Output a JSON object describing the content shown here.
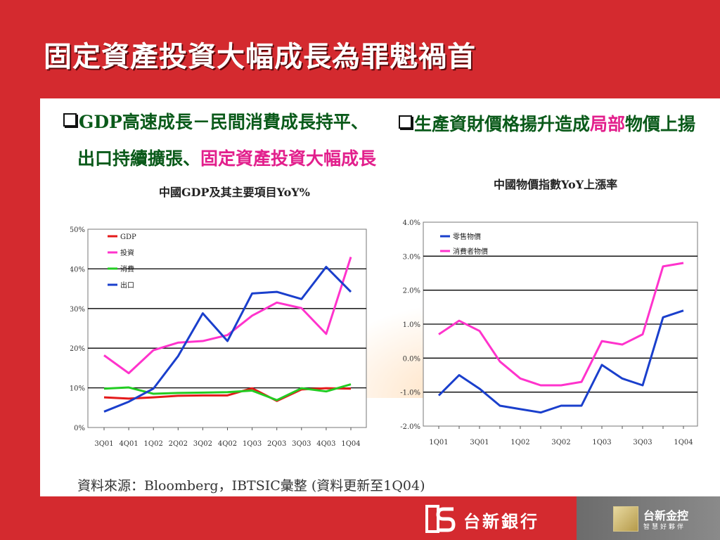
{
  "slide": {
    "title": "固定資產投資大幅成長為罪魁禍首",
    "left_heading_line1": "GDP高速成長－民間消費成長持平、",
    "left_heading_line2_a": "出口持續擴張、",
    "left_heading_line2_b": "固定資產投資大幅成長",
    "right_heading_a": "生產資財價格揚升造成",
    "right_heading_b": "局部",
    "right_heading_c": "物價上揚",
    "source": "資料來源：Bloomberg，IBTSIC彙整 (資料更新至1Q04)"
  },
  "footer": {
    "bank_name": "台新銀行",
    "holding_name": "台新金控",
    "slogan": "智慧好夥伴"
  },
  "colors": {
    "background": "#d42a2f",
    "heading_green": "#0a5a1a",
    "heading_pink": "#e21f8c"
  },
  "chart_data": [
    {
      "type": "line",
      "title": "中國GDP及其主要項目YoY%",
      "categories": [
        "3Q01",
        "4Q01",
        "1Q02",
        "2Q02",
        "3Q02",
        "4Q02",
        "1Q03",
        "2Q03",
        "3Q03",
        "4Q03",
        "1Q04"
      ],
      "ylim": [
        0,
        50
      ],
      "yticks": [
        "0%",
        "10%",
        "20%",
        "30%",
        "40%",
        "50%"
      ],
      "grid": true,
      "legend": "top-left",
      "series": [
        {
          "name": "GDP",
          "color": "#e41a1a",
          "values": [
            7.6,
            7.3,
            7.6,
            8.0,
            8.1,
            8.1,
            9.9,
            6.7,
            9.6,
            9.9,
            9.8
          ]
        },
        {
          "name": "投資",
          "color": "#ff33cc",
          "values": [
            18.2,
            13.7,
            19.5,
            21.4,
            21.8,
            23.3,
            28.2,
            31.5,
            30.1,
            23.6,
            43.0
          ]
        },
        {
          "name": "消費",
          "color": "#22cc22",
          "values": [
            9.8,
            10.1,
            8.5,
            8.7,
            8.8,
            8.9,
            9.3,
            6.9,
            9.9,
            9.1,
            10.9
          ]
        },
        {
          "name": "出口",
          "color": "#1a3fcc",
          "values": [
            4.0,
            6.5,
            9.8,
            18.0,
            28.8,
            21.8,
            33.8,
            34.2,
            32.4,
            40.5,
            34.2
          ]
        }
      ]
    },
    {
      "type": "line",
      "title": "中國物價指數YoY上漲率",
      "categories": [
        "1Q01",
        "2Q01",
        "3Q01",
        "4Q01",
        "1Q02",
        "2Q02",
        "3Q02",
        "4Q02",
        "1Q03",
        "2Q03",
        "3Q03",
        "4Q03",
        "1Q04"
      ],
      "xticklabels": [
        "1Q01",
        "3Q01",
        "1Q02",
        "3Q02",
        "1Q03",
        "3Q03",
        "1Q04"
      ],
      "ylim": [
        -2.0,
        4.0
      ],
      "yticks": [
        "-2.0%",
        "-1.0%",
        "0.0%",
        "1.0%",
        "2.0%",
        "3.0%",
        "4.0%"
      ],
      "grid": true,
      "legend": "top-left",
      "series": [
        {
          "name": "零售物價",
          "color": "#1a3fcc",
          "values": [
            -1.1,
            -0.5,
            -0.9,
            -1.4,
            -1.5,
            -1.6,
            -1.4,
            -1.4,
            -0.2,
            -0.6,
            -0.8,
            1.2,
            1.4
          ]
        },
        {
          "name": "消費者物價",
          "color": "#ff33cc",
          "values": [
            0.7,
            1.1,
            0.8,
            -0.1,
            -0.6,
            -0.8,
            -0.8,
            -0.7,
            0.5,
            0.4,
            0.7,
            2.7,
            2.8
          ]
        }
      ]
    }
  ]
}
